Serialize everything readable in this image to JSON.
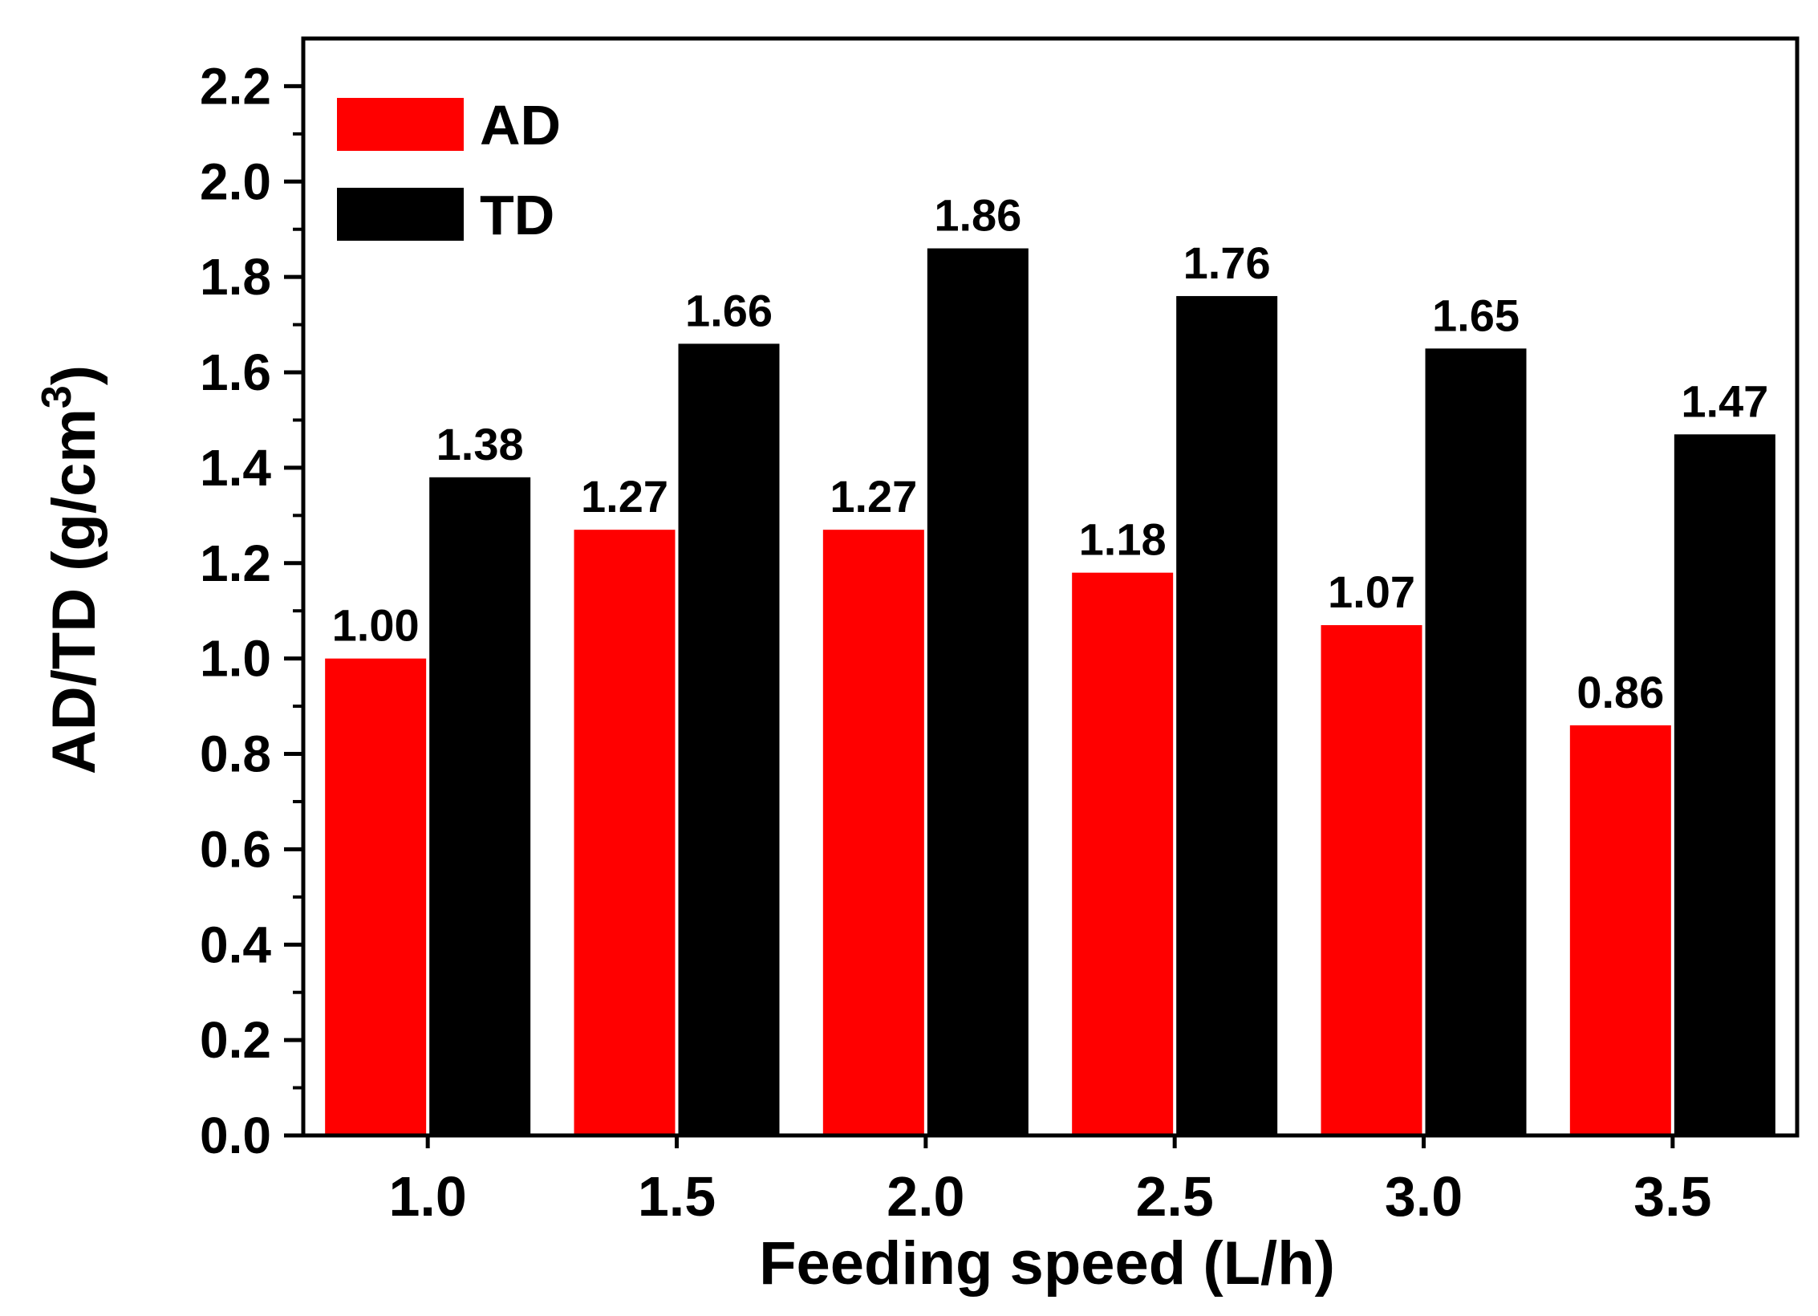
{
  "chart_data": {
    "type": "bar",
    "title": "",
    "xlabel": "Feeding speed (L/h)",
    "ylabel_main": "AD/TD (g/cm",
    "ylabel_sup": "3",
    "ylabel_close": ")",
    "categories": [
      "1.0",
      "1.5",
      "2.0",
      "2.5",
      "3.0",
      "3.5"
    ],
    "series": [
      {
        "name": "AD",
        "color": "#ff0000",
        "values": [
          1.0,
          1.27,
          1.27,
          1.18,
          1.07,
          0.86
        ],
        "labels": [
          "1.00",
          "1.27",
          "1.27",
          "1.18",
          "1.07",
          "0.86"
        ]
      },
      {
        "name": "TD",
        "color": "#000000",
        "values": [
          1.38,
          1.66,
          1.86,
          1.76,
          1.65,
          1.47
        ],
        "labels": [
          "1.38",
          "1.66",
          "1.86",
          "1.76",
          "1.65",
          "1.47"
        ]
      }
    ],
    "ylim": [
      0,
      2.3
    ],
    "yticks": [
      0.0,
      0.2,
      0.4,
      0.6,
      0.8,
      1.0,
      1.2,
      1.4,
      1.6,
      1.8,
      2.0,
      2.2
    ],
    "ytick_labels": [
      "0.0",
      "0.2",
      "0.4",
      "0.6",
      "0.8",
      "1.0",
      "1.2",
      "1.4",
      "1.6",
      "1.8",
      "2.0",
      "2.2"
    ],
    "grid": false,
    "legend_position": "top-left"
  }
}
